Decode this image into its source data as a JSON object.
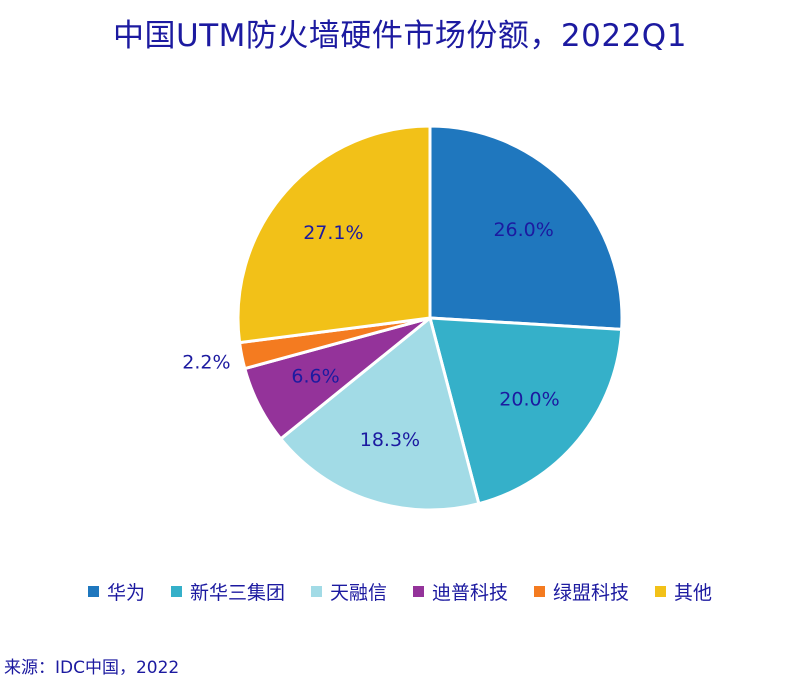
{
  "title": "中国UTM防火墙硬件市场份额，2022Q1",
  "source": "来源：IDC中国，2022",
  "chart_data": {
    "type": "pie",
    "title": "中国UTM防火墙硬件市场份额，2022Q1",
    "legend_position": "bottom",
    "slices": [
      {
        "name": "华为",
        "value": 26.0,
        "label": "26.0%",
        "color": "#1f77be"
      },
      {
        "name": "新华三集团",
        "value": 20.0,
        "label": "20.0%",
        "color": "#35b0c9"
      },
      {
        "name": "天融信",
        "value": 18.3,
        "label": "18.3%",
        "color": "#a2dbe6"
      },
      {
        "name": "迪普科技",
        "value": 6.6,
        "label": "6.6%",
        "color": "#94339a"
      },
      {
        "name": "绿盟科技",
        "value": 2.2,
        "label": "2.2%",
        "color": "#f47b20"
      },
      {
        "name": "其他",
        "value": 27.1,
        "label": "27.1%",
        "color": "#f2c118"
      }
    ]
  }
}
